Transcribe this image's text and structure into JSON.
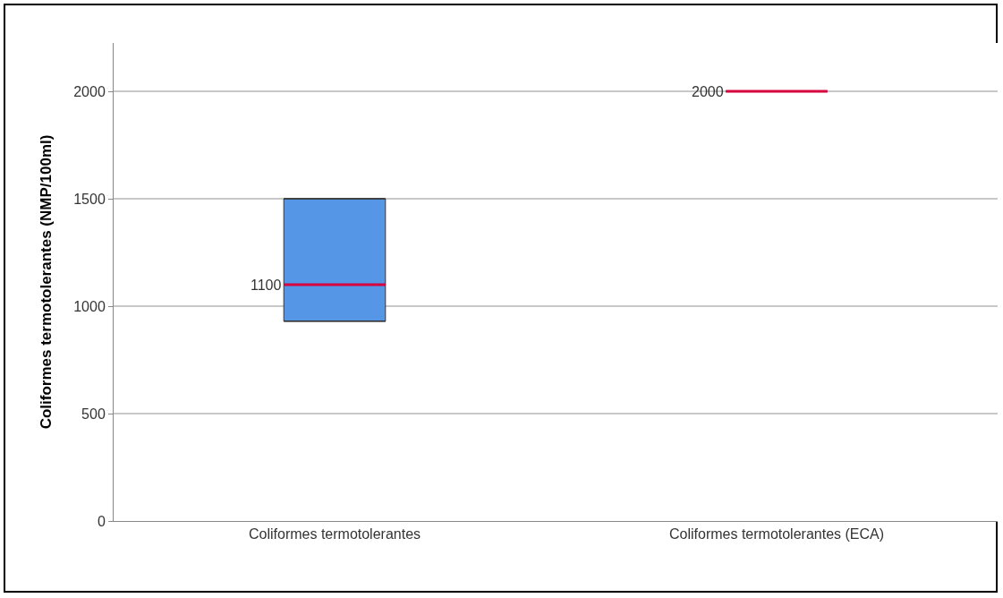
{
  "chart_data": {
    "type": "box",
    "ylabel": "Coliformes termotolerantes (NMP/100ml)",
    "categories": [
      "Coliformes termotolerantes",
      "Coliformes termotolerantes (ECA)"
    ],
    "series": [
      {
        "color": "#5596e6",
        "boxes": [
          {
            "low": 930,
            "q1": 930,
            "median": 1100,
            "q3": 1500,
            "high": 1500
          },
          {
            "low": 2000,
            "q1": 2000,
            "median": 2000,
            "q3": 2000,
            "high": 2000
          }
        ],
        "value_labels": [
          "1100",
          "2000"
        ]
      }
    ],
    "ylim": [
      0,
      2225
    ],
    "yticks": [
      0,
      500,
      1000,
      1500,
      2000
    ],
    "grid": "y"
  }
}
